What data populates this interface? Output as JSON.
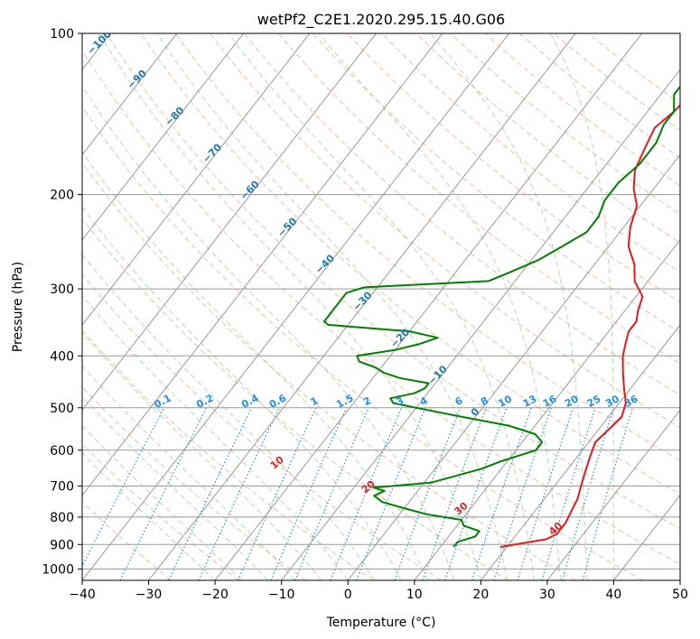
{
  "chart_data": {
    "type": "line",
    "subtype": "skew-T log-P diagram",
    "title": "wetPf2_C2E1.2020.295.15.40.G06",
    "xlabel": "Temperature (°C)",
    "ylabel": "Pressure (hPa)",
    "xlim": [
      -40,
      50
    ],
    "ylim": [
      1050,
      100
    ],
    "y_scale": "log",
    "x_ticks": [
      "−40",
      "−30",
      "−20",
      "−10",
      "0",
      "10",
      "20",
      "30",
      "40",
      "50"
    ],
    "x_tick_values": [
      -40,
      -30,
      -20,
      -10,
      0,
      10,
      20,
      30,
      40,
      50
    ],
    "y_ticks": [
      "100",
      "200",
      "300",
      "400",
      "500",
      "600",
      "700",
      "800",
      "900",
      "1000"
    ],
    "y_tick_values": [
      100,
      200,
      300,
      400,
      500,
      600,
      700,
      800,
      900,
      1000
    ],
    "grid": true,
    "colors": {
      "temperature": "#e41a1c",
      "dewpoint": "#008000",
      "isotherm": "#999999",
      "dry_adiabat": "#f4a582",
      "moist_adiabat": "#9fd39f",
      "mixing_ratio": "#1f8ef1"
    },
    "series": [
      {
        "name": "",
        "role": "temperature",
        "pressure": [
          910,
          880,
          860,
          820,
          780,
          740,
          700,
          660,
          620,
          580,
          550,
          520,
          490,
          460,
          430,
          400,
          380,
          360,
          345,
          330,
          310,
          290,
          270,
          250,
          230,
          210,
          195,
          180,
          165,
          150,
          140,
          130,
          122,
          115,
          108,
          103,
          100
        ],
        "values": [
          19,
          25,
          26,
          26,
          25.5,
          25,
          24,
          23,
          22,
          21,
          21.5,
          22,
          21,
          19,
          17,
          15,
          14,
          13,
          13,
          12,
          11,
          8,
          6,
          3,
          1,
          -0.5,
          -3,
          -5,
          -6,
          -7,
          -6,
          -5.5,
          -6.5,
          -7.5,
          -8.5,
          -9.5,
          -10
        ]
      },
      {
        "name": "",
        "role": "dewpoint",
        "pressure": [
          910,
          890,
          870,
          850,
          830,
          810,
          790,
          770,
          750,
          730,
          715,
          705,
          690,
          670,
          650,
          630,
          600,
          580,
          560,
          540,
          520,
          500,
          490,
          480,
          470,
          460,
          450,
          440,
          430,
          420,
          410,
          400,
          390,
          380,
          370,
          360,
          350,
          345,
          335,
          320,
          305,
          298,
          290,
          280,
          265,
          250,
          235,
          220,
          205,
          190,
          175,
          160,
          148,
          140,
          130,
          120,
          112,
          106,
          102,
          100
        ],
        "values": [
          12,
          12,
          14,
          14,
          11,
          10,
          4,
          0,
          -4,
          -6,
          -5,
          -7,
          1,
          4,
          7,
          9,
          13,
          13,
          11,
          6,
          -2,
          -10,
          -14,
          -15,
          -12,
          -11,
          -11,
          -16,
          -19,
          -21,
          -24,
          -25,
          -20,
          -17,
          -15,
          -20,
          -33,
          -34,
          -34,
          -34,
          -34,
          -32,
          -14,
          -12,
          -9,
          -7,
          -5,
          -5,
          -6,
          -6,
          -5,
          -5,
          -6,
          -6,
          -8,
          -8,
          -8,
          -7,
          -6,
          -6
        ]
      }
    ],
    "mixing_ratio_labels": [
      "0.1",
      "0.2",
      "0.4",
      "0.6",
      "1",
      "1.5",
      "2",
      "3",
      "4",
      "6",
      "8",
      "10",
      "13",
      "16",
      "20",
      "25",
      "30",
      "36"
    ],
    "mixing_ratio_values": [
      0.1,
      0.2,
      0.4,
      0.6,
      1,
      1.5,
      2,
      3,
      4,
      6,
      8,
      10,
      13,
      16,
      20,
      25,
      30,
      36
    ],
    "dry_adiabat_labels": [
      "10",
      "20",
      "30",
      "40"
    ],
    "dry_adiabat_values": [
      10,
      20,
      30,
      40
    ],
    "moist_adiabat_labels": [
      "−100",
      "−90",
      "−80",
      "−70",
      "−60",
      "−50",
      "−40",
      "−30",
      "−20",
      "−10",
      "0"
    ],
    "moist_adiabat_values": [
      -100,
      -90,
      -80,
      -70,
      -60,
      -50,
      -40,
      -30,
      -20,
      -10,
      0
    ]
  }
}
